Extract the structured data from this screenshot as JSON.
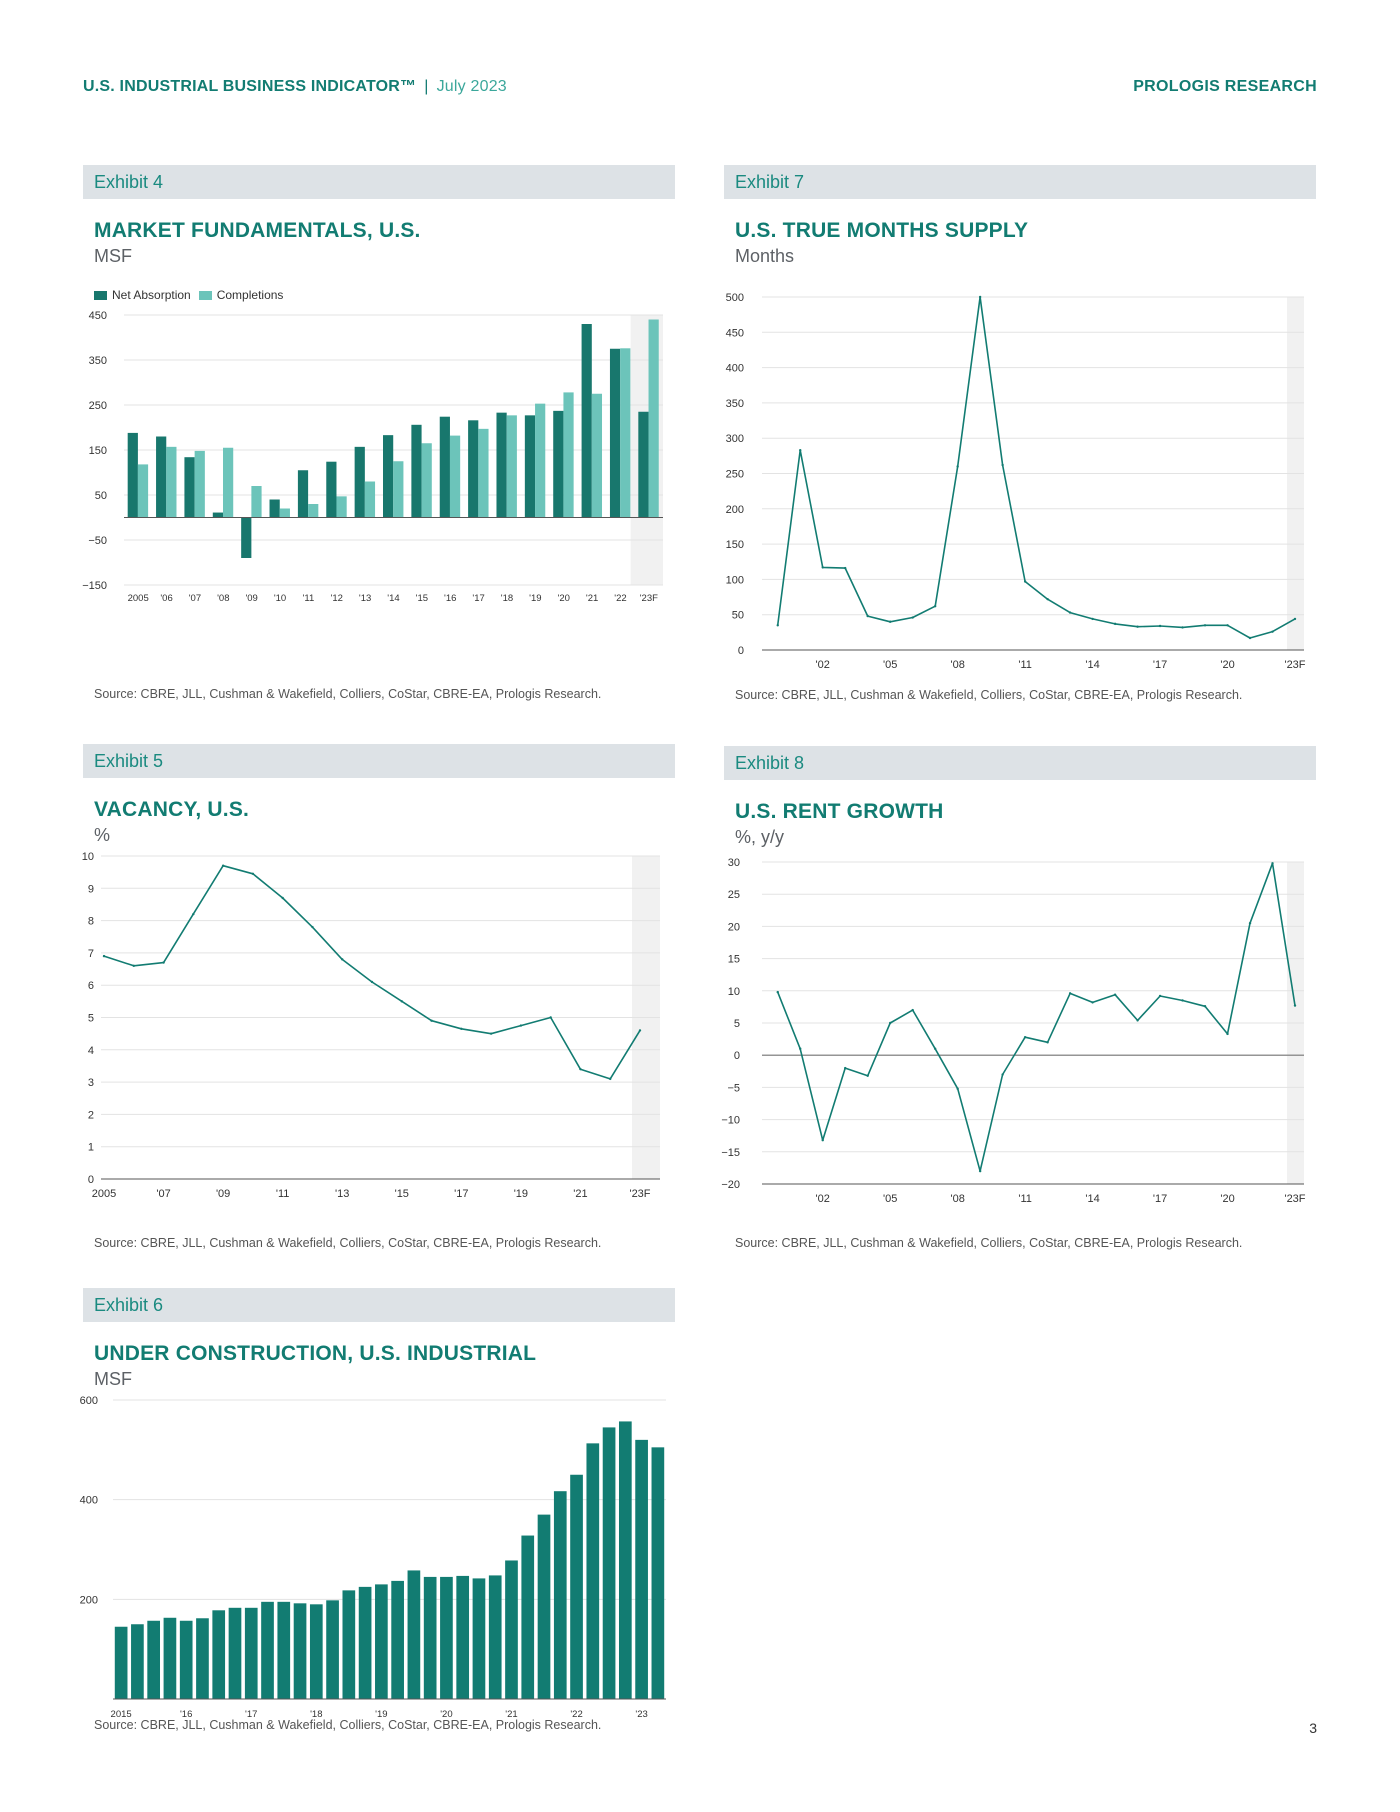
{
  "header": {
    "report_title": "U.S. INDUSTRIAL BUSINESS INDICATOR™",
    "separator": "|",
    "date": "July 2023",
    "brand": "PROLOGIS RESEARCH"
  },
  "page_number": "3",
  "colors": {
    "accent": "#127c72",
    "teal_light": "#6cc4ba",
    "teal_dark": "#18776d",
    "forecast_shade": "#f1f1f1",
    "exhibit_bar": "#dde2e6"
  },
  "chart_data": [
    {
      "id": "exhibit4",
      "exhibit": "Exhibit 4",
      "type": "bar",
      "title": "MARKET FUNDAMENTALS, U.S.",
      "unit": "MSF",
      "legend": [
        "Net Absorption",
        "Completions"
      ],
      "legend_position": "top-left",
      "categories": [
        "2005",
        "'06",
        "'07",
        "'08",
        "'09",
        "'10",
        "'11",
        "'12",
        "'13",
        "'14",
        "'15",
        "'16",
        "'17",
        "'18",
        "'19",
        "'20",
        "'21",
        "'22",
        "'23F"
      ],
      "series": [
        {
          "name": "Net Absorption",
          "color": "#18776d",
          "values": [
            188,
            180,
            134,
            11,
            -90,
            40,
            105,
            124,
            157,
            183,
            206,
            224,
            216,
            233,
            227,
            237,
            430,
            375,
            235
          ]
        },
        {
          "name": "Completions",
          "color": "#6cc4ba",
          "values": [
            118,
            157,
            148,
            155,
            70,
            20,
            30,
            47,
            80,
            125,
            165,
            182,
            197,
            227,
            253,
            278,
            275,
            376,
            440
          ]
        }
      ],
      "yticks": [
        450,
        350,
        250,
        150,
        50,
        -50,
        -150
      ],
      "ylim": [
        -150,
        450
      ],
      "forecast_category": "'23F",
      "grid": true,
      "source": "Source: CBRE, JLL, Cushman & Wakefield, Colliers, CoStar, CBRE-EA, Prologis Research."
    },
    {
      "id": "exhibit5",
      "exhibit": "Exhibit 5",
      "type": "line",
      "title": "VACANCY, U.S.",
      "unit": "%",
      "x": [
        2005,
        2006,
        2007,
        2008,
        2009,
        2010,
        2011,
        2012,
        2013,
        2014,
        2015,
        2016,
        2017,
        2018,
        2019,
        2020,
        2021,
        2022,
        2023
      ],
      "values": [
        6.9,
        6.6,
        6.7,
        8.2,
        9.7,
        9.45,
        8.7,
        7.8,
        6.8,
        6.1,
        5.5,
        4.9,
        4.65,
        4.5,
        4.75,
        5.0,
        3.4,
        3.1,
        4.6
      ],
      "xticks": [
        "2005",
        "'07",
        "'09",
        "'11",
        "'13",
        "'15",
        "'17",
        "'19",
        "'21",
        "'23F"
      ],
      "xtick_values": [
        2005,
        2007,
        2009,
        2011,
        2013,
        2015,
        2017,
        2019,
        2021,
        2023
      ],
      "yticks": [
        10,
        9,
        8,
        7,
        6,
        5,
        4,
        3,
        2,
        1,
        0
      ],
      "ylim": [
        0,
        10
      ],
      "xlim": [
        2005,
        2023
      ],
      "forecast_x": 2023,
      "grid": true,
      "source": "Source: CBRE, JLL, Cushman & Wakefield, Colliers, CoStar, CBRE-EA, Prologis Research."
    },
    {
      "id": "exhibit6",
      "exhibit": "Exhibit 6",
      "type": "bar",
      "title": "UNDER CONSTRUCTION, U.S. INDUSTRIAL",
      "unit": "MSF",
      "categories": [
        "2015 Q1",
        "2015 Q2",
        "2015 Q3",
        "2015 Q4",
        "2016 Q1",
        "2016 Q2",
        "2016 Q3",
        "2016 Q4",
        "2017 Q1",
        "2017 Q2",
        "2017 Q3",
        "2017 Q4",
        "2018 Q1",
        "2018 Q2",
        "2018 Q3",
        "2018 Q4",
        "2019 Q1",
        "2019 Q2",
        "2019 Q3",
        "2019 Q4",
        "2020 Q1",
        "2020 Q2",
        "2020 Q3",
        "2020 Q4",
        "2021 Q1",
        "2021 Q2",
        "2021 Q3",
        "2021 Q4",
        "2022 Q1",
        "2022 Q2",
        "2022 Q3",
        "2022 Q4",
        "2023 Q1",
        "2023 Q2"
      ],
      "values": [
        145,
        150,
        157,
        163,
        157,
        162,
        178,
        183,
        183,
        195,
        195,
        192,
        190,
        198,
        218,
        225,
        230,
        237,
        258,
        245,
        245,
        247,
        242,
        248,
        278,
        328,
        370,
        417,
        450,
        513,
        545,
        557,
        520,
        505
      ],
      "xticks": [
        "2015",
        "'16",
        "'17",
        "'18",
        "'19",
        "'20",
        "'21",
        "'22",
        "'23"
      ],
      "xtick_index": [
        0,
        4,
        8,
        12,
        16,
        20,
        24,
        28,
        32
      ],
      "yticks": [
        600,
        400,
        200
      ],
      "ylim": [
        0,
        600
      ],
      "grid": true,
      "source": "Source: CBRE, JLL, Cushman & Wakefield, Colliers, CoStar, CBRE-EA, Prologis Research."
    },
    {
      "id": "exhibit7",
      "exhibit": "Exhibit 7",
      "type": "line",
      "title": "U.S. TRUE MONTHS SUPPLY",
      "unit": "Months",
      "x": [
        2000,
        2001,
        2002,
        2003,
        2004,
        2005,
        2006,
        2007,
        2008,
        2009,
        2010,
        2011,
        2012,
        2013,
        2014,
        2015,
        2016,
        2017,
        2018,
        2019,
        2020,
        2021,
        2022,
        2023
      ],
      "values": [
        35,
        283,
        117,
        116,
        48,
        40,
        46,
        62,
        260,
        500,
        262,
        97,
        72,
        53,
        44,
        37,
        33,
        34,
        32,
        35,
        35,
        17,
        26,
        44
      ],
      "xticks": [
        "'02",
        "'05",
        "'08",
        "'11",
        "'14",
        "'17",
        "'20",
        "'23F"
      ],
      "xtick_values": [
        2002,
        2005,
        2008,
        2011,
        2014,
        2017,
        2020,
        2023
      ],
      "yticks": [
        500,
        450,
        400,
        350,
        300,
        250,
        200,
        150,
        100,
        50,
        0
      ],
      "ylim": [
        0,
        500
      ],
      "xlim": [
        1999.3,
        2023.4
      ],
      "forecast_x": 2023,
      "grid": true,
      "source": "Source: CBRE, JLL, Cushman & Wakefield, Colliers, CoStar, CBRE-EA, Prologis Research."
    },
    {
      "id": "exhibit8",
      "exhibit": "Exhibit 8",
      "type": "line",
      "title": "U.S. RENT GROWTH",
      "unit": "%, y/y",
      "x": [
        2000,
        2001,
        2002,
        2003,
        2004,
        2005,
        2006,
        2007,
        2008,
        2009,
        2010,
        2011,
        2012,
        2013,
        2014,
        2015,
        2016,
        2017,
        2018,
        2019,
        2020,
        2021,
        2022,
        2023
      ],
      "values": [
        9.8,
        1.0,
        -13.2,
        -2.0,
        -3.2,
        5.0,
        7.0,
        1.0,
        -5.2,
        -18.0,
        -3.0,
        2.8,
        2.0,
        9.6,
        8.2,
        9.4,
        5.4,
        9.2,
        8.5,
        7.6,
        3.3,
        20.5,
        29.8,
        7.7
      ],
      "xticks": [
        "'02",
        "'05",
        "'08",
        "'11",
        "'14",
        "'17",
        "'20",
        "'23F"
      ],
      "xtick_values": [
        2002,
        2005,
        2008,
        2011,
        2014,
        2017,
        2020,
        2023
      ],
      "yticks": [
        30,
        25,
        20,
        15,
        10,
        5,
        0,
        -5,
        -10,
        -15,
        -20
      ],
      "ylim": [
        -20,
        30
      ],
      "xlim": [
        1999.3,
        2023.4
      ],
      "forecast_x": 2023,
      "grid": true,
      "source": "Source: CBRE, JLL, Cushman & Wakefield, Colliers, CoStar, CBRE-EA, Prologis Research."
    }
  ]
}
